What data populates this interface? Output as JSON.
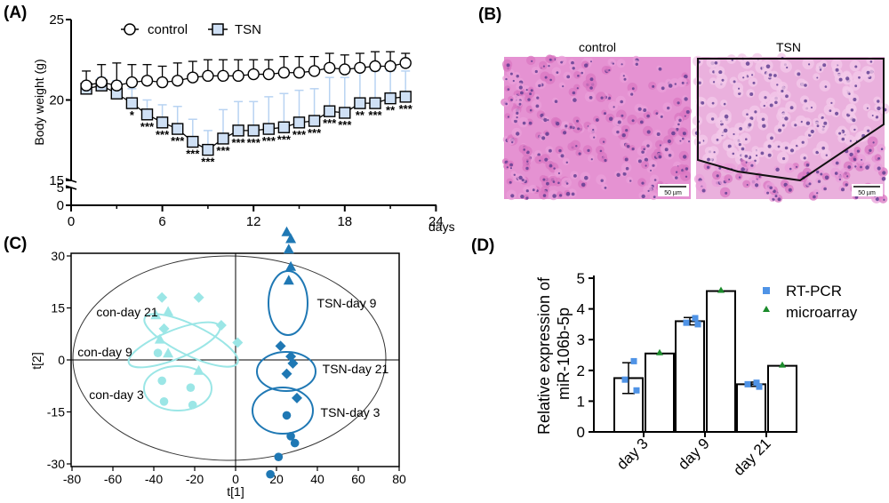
{
  "panel_labels": {
    "a": "(A)",
    "b": "(B)",
    "c": "(C)",
    "d": "(D)"
  },
  "colors": {
    "control_marker": "#ffffff",
    "tsn_marker": "#cfe0f5",
    "tsn_error": "#b8d3f2",
    "con_cluster": "#9be6e6",
    "tsn_cluster": "#1f78b4",
    "rtpcr": "#4f93e6",
    "microarray": "#1a8a2a",
    "he_stain": "#e689cf"
  },
  "micrographs": {
    "control_label": "control",
    "tsn_label": "TSN",
    "scale_bar_label": "50 µm"
  },
  "chart_data": [
    {
      "panel": "A",
      "type": "line",
      "ylabel": "Body weight (g)",
      "xlabel": "days",
      "xlim": [
        0,
        24
      ],
      "ylim": [
        0,
        25
      ],
      "y_axis_break": [
        5,
        15
      ],
      "x_ticks": [
        "0",
        "6",
        "12",
        "18",
        "24"
      ],
      "y_ticks": [
        "0",
        "5",
        "15",
        "20",
        "25"
      ],
      "legend_position": "top",
      "x": [
        1,
        2,
        3,
        4,
        5,
        6,
        7,
        8,
        9,
        10,
        11,
        12,
        13,
        14,
        15,
        16,
        17,
        18,
        19,
        20,
        21,
        22
      ],
      "series": [
        {
          "name": "control",
          "marker": "circle",
          "values": [
            20.9,
            21.1,
            20.9,
            21.1,
            21.2,
            21.1,
            21.2,
            21.4,
            21.5,
            21.5,
            21.5,
            21.6,
            21.6,
            21.7,
            21.7,
            21.8,
            22.0,
            21.9,
            22.0,
            22.1,
            22.1,
            22.3
          ],
          "errors": [
            0.9,
            1.1,
            1.4,
            1.1,
            1.0,
            1.0,
            1.1,
            1.0,
            1.0,
            1.0,
            1.0,
            0.9,
            0.9,
            1.0,
            1.0,
            0.9,
            0.9,
            0.9,
            0.9,
            0.9,
            0.9,
            0.6
          ]
        },
        {
          "name": "TSN",
          "marker": "square",
          "values": [
            20.7,
            20.9,
            20.4,
            19.8,
            19.1,
            18.6,
            18.2,
            17.4,
            16.9,
            17.6,
            18.1,
            18.1,
            18.2,
            18.3,
            18.6,
            18.7,
            19.3,
            19.2,
            19.8,
            19.8,
            20.1,
            20.2
          ],
          "errors": [
            0.2,
            0.5,
            0.8,
            0.9,
            0.9,
            1.1,
            1.4,
            1.4,
            1.2,
            1.8,
            1.8,
            1.8,
            2.0,
            2.1,
            2.0,
            2.0,
            2.1,
            2.2,
            2.0,
            2.0,
            1.7,
            1.6
          ]
        }
      ],
      "significance": [
        "",
        "",
        "",
        "*",
        "***",
        "***",
        "***",
        "***",
        "***",
        "***",
        "***",
        "***",
        "***",
        "***",
        "***",
        "***",
        "***",
        "***",
        "**",
        "***",
        "**",
        "***"
      ]
    },
    {
      "panel": "C",
      "type": "scatter",
      "xlabel": "t[1]",
      "ylabel": "t[2]",
      "xlim": [
        -80,
        80
      ],
      "ylim": [
        -30,
        30
      ],
      "x_ticks": [
        "-80",
        "-60",
        "-40",
        "-20",
        "0",
        "20",
        "40",
        "60",
        "80"
      ],
      "y_ticks": [
        "30",
        "15",
        "0",
        "-15",
        "-30"
      ],
      "groups": [
        {
          "name": "con-day 21",
          "marker": "diamond",
          "color": "con",
          "points": [
            [
              -36,
              18
            ],
            [
              -35,
              9
            ],
            [
              -18,
              18
            ],
            [
              -7,
              10
            ],
            [
              1,
              5
            ]
          ]
        },
        {
          "name": "con-day 9",
          "marker": "triangle",
          "color": "con",
          "points": [
            [
              -39,
              13
            ],
            [
              -33,
              14
            ],
            [
              -37,
              6
            ],
            [
              -33,
              2
            ],
            [
              -18,
              -3
            ]
          ]
        },
        {
          "name": "con-day 3",
          "marker": "circle",
          "color": "con",
          "points": [
            [
              -36,
              -6
            ],
            [
              -35,
              -12
            ],
            [
              -22,
              -8
            ],
            [
              -21,
              -13
            ],
            [
              -38,
              2
            ]
          ]
        },
        {
          "name": "TSN-day 9",
          "marker": "triangle",
          "color": "tsn",
          "points": [
            [
              25,
              37
            ],
            [
              27,
              35
            ],
            [
              26,
              32
            ],
            [
              27,
              27
            ],
            [
              26,
              23
            ]
          ]
        },
        {
          "name": "TSN-day 21",
          "marker": "diamond",
          "color": "tsn",
          "points": [
            [
              22,
              4
            ],
            [
              27,
              1
            ],
            [
              28,
              -1
            ],
            [
              25,
              -4
            ],
            [
              30,
              -11
            ]
          ]
        },
        {
          "name": "TSN-day 3",
          "marker": "circle",
          "color": "tsn",
          "points": [
            [
              25,
              -16
            ],
            [
              27,
              -22
            ],
            [
              29,
              -24
            ],
            [
              21,
              -28
            ],
            [
              17,
              -33
            ]
          ]
        }
      ],
      "ellipse_labels": [
        "con-day 21",
        "con-day 9",
        "con-day 3",
        "TSN-day 9",
        "TSN-day 21",
        "TSN-day 3"
      ]
    },
    {
      "panel": "D",
      "type": "bar",
      "ylabel": "Relative expression of miR-106b-5p",
      "categories": [
        "day 3",
        "day 9",
        "day 21"
      ],
      "ylim": [
        0,
        5
      ],
      "y_ticks": [
        "0",
        "1",
        "2",
        "3",
        "4",
        "5"
      ],
      "legend_position": "top-right",
      "series": [
        {
          "name": "RT-PCR",
          "marker": "square",
          "values": [
            1.75,
            3.6,
            1.55
          ],
          "errors": [
            0.5,
            0.12,
            0.07
          ],
          "points": [
            [
              2.3,
              1.7,
              1.35
            ],
            [
              3.7,
              3.55,
              3.5
            ],
            [
              1.6,
              1.55,
              1.47
            ]
          ]
        },
        {
          "name": "microarray",
          "marker": "triangle",
          "values": [
            2.55,
            4.58,
            2.15
          ]
        }
      ]
    }
  ]
}
